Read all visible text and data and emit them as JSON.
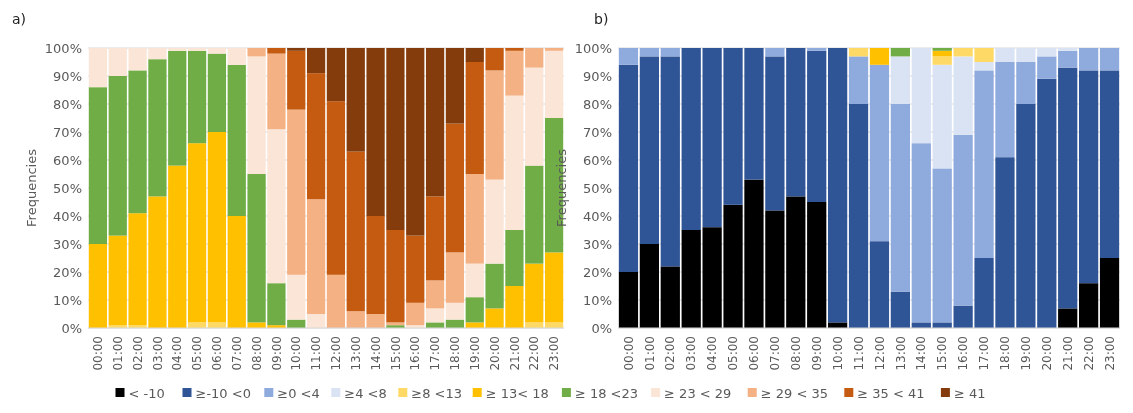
{
  "chart_data": [
    {
      "type": "bar",
      "title": "a)",
      "ylabel": "Frequencies",
      "stacked": true,
      "grid": "y",
      "legend": "bottom",
      "categories": [
        "00:00",
        "01:00",
        "02:00",
        "03:00",
        "04:00",
        "05:00",
        "06:00",
        "07:00",
        "08:00",
        "09:00",
        "10:00",
        "11:00",
        "12:00",
        "13:00",
        "14:00",
        "15:00",
        "16:00",
        "17:00",
        "18:00",
        "19:00",
        "20:00",
        "21:00",
        "22:00",
        "23:00"
      ],
      "ylim": [
        0,
        100
      ],
      "yticks": [
        {
          "value": 0,
          "label": "0%"
        },
        {
          "value": 10,
          "label": "10%"
        },
        {
          "value": 20,
          "label": "20%"
        },
        {
          "value": 30,
          "label": "30%"
        },
        {
          "value": 40,
          "label": "40%"
        },
        {
          "value": 50,
          "label": "50%"
        },
        {
          "value": 60,
          "label": "60%"
        },
        {
          "value": 70,
          "label": "70%"
        },
        {
          "value": 80,
          "label": "80%"
        },
        {
          "value": 90,
          "label": "90%"
        },
        {
          "value": 100,
          "label": "100%"
        }
      ],
      "series": [
        {
          "name": "< -10",
          "color": "#000000",
          "values": [
            0,
            0,
            0,
            0,
            0,
            0,
            0,
            0,
            0,
            0,
            0,
            0,
            0,
            0,
            0,
            0,
            0,
            0,
            0,
            0,
            0,
            0,
            0,
            0
          ]
        },
        {
          "name": "≥-10 <0",
          "color": "#2f5597",
          "values": [
            0,
            0,
            0,
            0,
            0,
            0,
            0,
            0,
            0,
            0,
            0,
            0,
            0,
            0,
            0,
            0,
            0,
            0,
            0,
            0,
            0,
            0,
            0,
            0
          ]
        },
        {
          "name": "≥0 <4",
          "color": "#8faadc",
          "values": [
            0,
            0,
            0,
            0,
            0,
            0,
            0,
            0,
            0,
            0,
            0,
            0,
            0,
            0,
            0,
            0,
            0,
            0,
            0,
            0,
            0,
            0,
            0,
            0
          ]
        },
        {
          "name": "≥4 <8",
          "color": "#dae3f3",
          "values": [
            0,
            0,
            0,
            0,
            0,
            0,
            0,
            0,
            0,
            0,
            0,
            0,
            0,
            0,
            0,
            0,
            0,
            0,
            0,
            0,
            0,
            0,
            0,
            0
          ]
        },
        {
          "name": "≥8 <13",
          "color": "#ffd966",
          "values": [
            0,
            1,
            1,
            0,
            0,
            2,
            2,
            0,
            0,
            0,
            0,
            0,
            0,
            0,
            0,
            0,
            0,
            0,
            0,
            0,
            0,
            0,
            2,
            2
          ]
        },
        {
          "name": "≥ 13< 18",
          "color": "#ffc000",
          "values": [
            30,
            32,
            40,
            47,
            58,
            64,
            68,
            40,
            2,
            1,
            0,
            0,
            0,
            0,
            0,
            0,
            0,
            0,
            0,
            2,
            7,
            15,
            21,
            25
          ]
        },
        {
          "name": "≥ 18 <23",
          "color": "#70ad47",
          "values": [
            56,
            57,
            51,
            49,
            41,
            33,
            28,
            54,
            53,
            15,
            3,
            0,
            0,
            0,
            0,
            1,
            0,
            2,
            3,
            9,
            16,
            20,
            35,
            48
          ]
        },
        {
          "name": "≥ 23 < 29",
          "color": "#fbe5d6",
          "values": [
            14,
            10,
            8,
            4,
            1,
            1,
            2,
            6,
            42,
            55,
            16,
            5,
            0,
            0,
            0,
            0,
            1,
            5,
            6,
            12,
            30,
            48,
            35,
            24
          ]
        },
        {
          "name": "≥ 29 < 35",
          "color": "#f4b183",
          "values": [
            0,
            0,
            0,
            0,
            0,
            0,
            0,
            0,
            3,
            27,
            59,
            41,
            19,
            6,
            5,
            1,
            8,
            10,
            18,
            32,
            39,
            16,
            7,
            1
          ]
        },
        {
          "name": "≥ 35 < 41",
          "color": "#c55a11",
          "values": [
            0,
            0,
            0,
            0,
            0,
            0,
            0,
            0,
            0,
            2,
            21,
            45,
            62,
            57,
            35,
            33,
            24,
            30,
            46,
            40,
            8,
            1,
            0,
            0
          ]
        },
        {
          "name": "≥ 41",
          "color": "#843c0c",
          "values": [
            0,
            0,
            0,
            0,
            0,
            0,
            0,
            0,
            0,
            0,
            1,
            9,
            19,
            37,
            60,
            65,
            67,
            53,
            27,
            5,
            0,
            0,
            0,
            0
          ]
        }
      ]
    },
    {
      "type": "bar",
      "title": "b)",
      "ylabel": "Frequencies",
      "stacked": true,
      "grid": "y",
      "categories": [
        "00:00",
        "01:00",
        "02:00",
        "03:00",
        "04:00",
        "05:00",
        "06:00",
        "07:00",
        "08:00",
        "09:00",
        "10:00",
        "11:00",
        "12:00",
        "13:00",
        "14:00",
        "15:00",
        "16:00",
        "17:00",
        "18:00",
        "19:00",
        "20:00",
        "21:00",
        "22:00",
        "23:00"
      ],
      "ylim": [
        0,
        100
      ],
      "yticks": [
        {
          "value": 0,
          "label": "0%"
        },
        {
          "value": 10,
          "label": "10%"
        },
        {
          "value": 20,
          "label": "20%"
        },
        {
          "value": 30,
          "label": "30%"
        },
        {
          "value": 40,
          "label": "40%"
        },
        {
          "value": 50,
          "label": "50%"
        },
        {
          "value": 60,
          "label": "60%"
        },
        {
          "value": 70,
          "label": "70%"
        },
        {
          "value": 80,
          "label": "80%"
        },
        {
          "value": 90,
          "label": "90%"
        },
        {
          "value": 100,
          "label": "100%"
        }
      ],
      "series": [
        {
          "color": "#000000",
          "values": [
            20,
            30,
            22,
            35,
            36,
            44,
            53,
            42,
            47,
            45,
            2,
            0,
            0,
            0,
            0,
            0,
            0,
            0,
            0,
            0,
            0,
            7,
            16,
            25
          ]
        },
        {
          "color": "#2f5597",
          "values": [
            74,
            67,
            75,
            65,
            64,
            56,
            47,
            55,
            53,
            54,
            98,
            80,
            31,
            13,
            2,
            2,
            8,
            25,
            61,
            80,
            89,
            86,
            76,
            67
          ]
        },
        {
          "color": "#8faadc",
          "values": [
            6,
            3,
            3,
            0,
            0,
            0,
            0,
            3,
            0,
            1,
            0,
            17,
            63,
            67,
            64,
            55,
            61,
            67,
            34,
            15,
            8,
            6,
            8,
            8
          ]
        },
        {
          "color": "#dae3f3",
          "values": [
            0,
            0,
            0,
            0,
            0,
            0,
            0,
            0,
            0,
            0,
            0,
            0,
            0,
            17,
            34,
            37,
            28,
            3,
            5,
            5,
            3,
            1,
            0,
            0
          ]
        },
        {
          "color": "#ffd966",
          "values": [
            0,
            0,
            0,
            0,
            0,
            0,
            0,
            0,
            0,
            0,
            0,
            3,
            0,
            0,
            0,
            3,
            3,
            5,
            0,
            0,
            0,
            0,
            0,
            0
          ]
        },
        {
          "color": "#ffc000",
          "values": [
            0,
            0,
            0,
            0,
            0,
            0,
            0,
            0,
            0,
            0,
            0,
            0,
            6,
            0,
            0,
            2,
            0,
            0,
            0,
            0,
            0,
            0,
            0,
            0
          ]
        },
        {
          "color": "#70ad47",
          "values": [
            0,
            0,
            0,
            0,
            0,
            0,
            0,
            0,
            0,
            0,
            0,
            0,
            0,
            3,
            0,
            1,
            0,
            0,
            0,
            0,
            0,
            0,
            0,
            0
          ]
        }
      ]
    }
  ]
}
